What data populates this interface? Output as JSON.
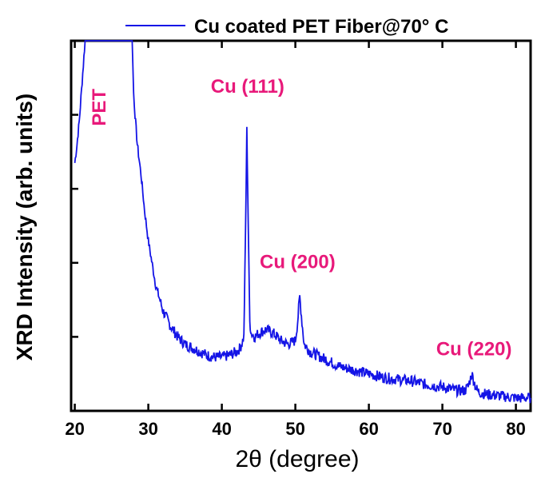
{
  "chart_data": {
    "type": "line",
    "xlabel": "2θ (degree)",
    "ylabel": "XRD Intensity (arb. units)",
    "xlim": [
      19.5,
      82
    ],
    "ylim": [
      0,
      100
    ],
    "x_ticks": [
      20,
      30,
      40,
      50,
      60,
      70,
      80
    ],
    "y_tick_labels": false,
    "legend": {
      "position": "top",
      "entries": [
        "Cu coated PET Fiber@70° C"
      ]
    },
    "series": [
      {
        "name": "Cu coated PET Fiber@70° C",
        "color": "#1414e6",
        "x": [
          20,
          20.3,
          20.6,
          21,
          21.4,
          21.8,
          22.5,
          23.5,
          25,
          26.5,
          27.3,
          27.8,
          28,
          28.2,
          28.5,
          29,
          29.5,
          30,
          31,
          32,
          33,
          34,
          35,
          36,
          37,
          38,
          39,
          40,
          41,
          42,
          42.5,
          43,
          43.2,
          43.4,
          43.6,
          43.8,
          44,
          44.5,
          45,
          46,
          47,
          48,
          49,
          50,
          50.3,
          50.6,
          50.9,
          51.2,
          52,
          53,
          54,
          55,
          56,
          57,
          58,
          59,
          60,
          62,
          64,
          66,
          68,
          70,
          72,
          73,
          73.5,
          74,
          74.3,
          74.6,
          75,
          76,
          78,
          80,
          82
        ],
        "y": [
          67,
          72,
          78,
          89,
          100,
          100,
          100,
          100,
          100,
          100,
          100,
          100,
          86,
          80,
          72,
          64,
          54,
          46,
          34,
          27,
          23,
          20,
          18,
          17,
          16,
          15,
          14.5,
          14.5,
          15,
          16,
          17,
          20,
          45,
          76,
          50,
          24,
          21,
          20,
          21,
          22,
          21,
          19,
          18,
          19,
          24,
          31,
          24,
          18,
          16,
          15,
          14,
          13,
          12,
          11.5,
          11,
          10.5,
          10,
          9,
          8.5,
          8,
          7,
          6.5,
          5.5,
          5.5,
          6.5,
          10,
          8,
          6,
          5,
          4.5,
          4,
          3.5,
          3.5
        ]
      }
    ],
    "annotations": [
      {
        "text": "PET",
        "x": 24.2,
        "y": 82,
        "rotation": -90
      },
      {
        "text": "Cu (111)",
        "x": 43.5,
        "y": 86
      },
      {
        "text": "Cu (200)",
        "x": 50.3,
        "y": 38.5
      },
      {
        "text": "Cu (220)",
        "x": 74.3,
        "y": 15
      }
    ]
  }
}
